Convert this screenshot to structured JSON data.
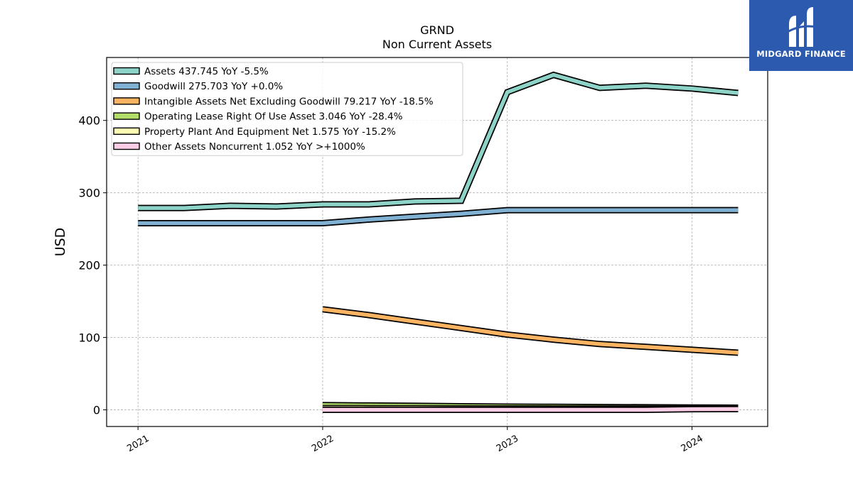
{
  "chart_data": {
    "type": "line",
    "title": "GRND",
    "subtitle": "Non Current  Assets",
    "ylabel": "USD",
    "xlabel": "",
    "ylim": [
      -23,
      487
    ],
    "xlim": [
      2020.83,
      2024.41
    ],
    "yticks": [
      0,
      100,
      200,
      300,
      400
    ],
    "xticks": [
      {
        "value": 2021,
        "label": "2021"
      },
      {
        "value": 2022,
        "label": "2022"
      },
      {
        "value": 2023,
        "label": "2023"
      },
      {
        "value": 2024,
        "label": "2024"
      }
    ],
    "grid": true,
    "legend_position": "top-left",
    "series": [
      {
        "name": "Assets  437.745 YoY -5.5%",
        "color": "#8dd3c7",
        "x": [
          2021.0,
          2021.25,
          2021.5,
          2021.75,
          2022.0,
          2022.25,
          2022.5,
          2022.75,
          2023.0,
          2023.25,
          2023.5,
          2023.75,
          2024.0,
          2024.25
        ],
        "y": [
          279,
          279,
          282,
          281,
          284,
          284,
          288,
          289,
          439,
          463,
          445,
          448,
          444,
          438
        ]
      },
      {
        "name": "Goodwill  275.703 YoY +0.0%",
        "color": "#80b1d3",
        "x": [
          2021.0,
          2021.25,
          2021.5,
          2021.75,
          2022.0,
          2022.25,
          2022.5,
          2022.75,
          2023.0,
          2023.25,
          2023.5,
          2023.75,
          2024.0,
          2024.25
        ],
        "y": [
          258,
          258,
          258,
          258,
          258,
          263,
          267,
          271,
          276,
          276,
          276,
          276,
          276,
          276
        ]
      },
      {
        "name": "Intangible Assets Net Excluding Goodwill  79.217 YoY -18.5%",
        "color": "#fdb462",
        "x": [
          2022.0,
          2022.25,
          2022.5,
          2022.75,
          2023.0,
          2023.25,
          2023.5,
          2023.75,
          2024.0,
          2024.25
        ],
        "y": [
          139,
          131,
          122,
          113,
          104,
          97,
          91,
          87,
          83,
          79
        ]
      },
      {
        "name": "Operating Lease Right Of Use Asset  3.046 YoY -28.4%",
        "color": "#b3de69",
        "x": [
          2022.0,
          2022.25,
          2022.5,
          2022.75,
          2023.0,
          2023.25,
          2023.5,
          2023.75,
          2024.0,
          2024.25
        ],
        "y": [
          6.5,
          6.0,
          5.5,
          5.0,
          4.5,
          4.2,
          3.9,
          3.6,
          3.3,
          3.0
        ]
      },
      {
        "name": "Property Plant And Equipment Net  1.575 YoY -15.2%",
        "color": "#ffffb3",
        "x": [
          2022.0,
          2022.25,
          2022.5,
          2022.75,
          2023.0,
          2023.25,
          2023.5,
          2023.75,
          2024.0,
          2024.25
        ],
        "y": [
          2.4,
          2.3,
          2.2,
          2.0,
          1.9,
          1.8,
          1.7,
          1.7,
          1.6,
          1.6
        ]
      },
      {
        "name": "Other Assets Noncurrent  1.052 YoY >+1000%",
        "color": "#fccde5",
        "x": [
          2022.0,
          2022.25,
          2022.5,
          2022.75,
          2023.0,
          2023.25,
          2023.5,
          2023.75,
          2024.0,
          2024.25
        ],
        "y": [
          0.05,
          0.05,
          0.05,
          0.05,
          0.05,
          0.05,
          0.05,
          0.05,
          0.9,
          1.05
        ]
      }
    ]
  },
  "logo": {
    "text": "MIDGARD FINANCE",
    "background": "#2b5aae"
  }
}
